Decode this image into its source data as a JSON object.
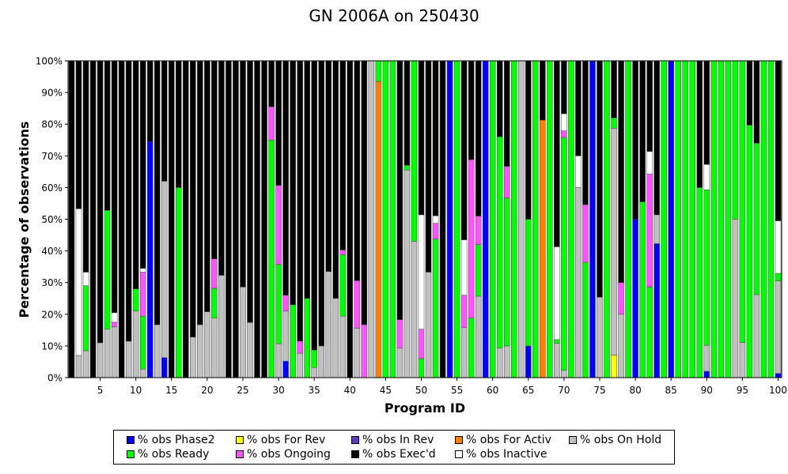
{
  "chart_data": {
    "type": "bar",
    "stacked": true,
    "title": "GN 2006A on 250430",
    "xlabel": "Program ID",
    "ylabel": "Percentage of observations",
    "ylim": [
      0,
      100
    ],
    "y_ticks": [
      "0%",
      "10%",
      "20%",
      "30%",
      "40%",
      "50%",
      "60%",
      "70%",
      "80%",
      "90%",
      "100%"
    ],
    "x_ticks": [
      "5",
      "10",
      "15",
      "20",
      "25",
      "30",
      "35",
      "40",
      "45",
      "50",
      "55",
      "60",
      "65",
      "70",
      "75",
      "80",
      "85",
      "90",
      "95",
      "100"
    ],
    "legend_position": "bottom",
    "legend": [
      {
        "key": "phase2",
        "label": "% obs Phase2",
        "color": "#0000ff"
      },
      {
        "key": "for_rev",
        "label": "% obs For Rev",
        "color": "#ffff00"
      },
      {
        "key": "in_rev",
        "label": "% obs In Rev",
        "color": "#6633cc"
      },
      {
        "key": "for_activ",
        "label": "% obs For Activ",
        "color": "#ff7f00"
      },
      {
        "key": "on_hold",
        "label": "% obs On Hold",
        "color": "#c0c0c0"
      },
      {
        "key": "ready",
        "label": "% obs Ready",
        "color": "#00ff00"
      },
      {
        "key": "ongoing",
        "label": "% obs Ongoing",
        "color": "#ff55ff"
      },
      {
        "key": "execd",
        "label": "% obs Exec'd",
        "color": "#000000"
      },
      {
        "key": "inactive",
        "label": "% obs Inactive",
        "color": "#ffffff"
      }
    ],
    "stack_order": [
      "phase2",
      "for_rev",
      "in_rev",
      "for_activ",
      "on_hold",
      "ready",
      "ongoing",
      "inactive",
      "execd"
    ],
    "categories": [
      "1",
      "2",
      "3",
      "4",
      "5",
      "6",
      "7",
      "8",
      "9",
      "10",
      "11",
      "12",
      "13",
      "14",
      "15",
      "16",
      "17",
      "18",
      "19",
      "20",
      "21",
      "22",
      "23",
      "24",
      "25",
      "26",
      "27",
      "28",
      "29",
      "30",
      "31",
      "32",
      "33",
      "34",
      "35",
      "36",
      "37",
      "38",
      "39",
      "40",
      "41",
      "42",
      "43",
      "44",
      "45",
      "46",
      "47",
      "48",
      "49",
      "50",
      "51",
      "52",
      "53",
      "54",
      "55",
      "56",
      "57",
      "58",
      "59",
      "60",
      "61",
      "62",
      "63",
      "64",
      "65",
      "66",
      "67",
      "68",
      "69",
      "70",
      "71",
      "72",
      "73",
      "74",
      "75",
      "76",
      "77",
      "78",
      "79",
      "80",
      "81",
      "82",
      "83",
      "84",
      "85",
      "86",
      "87",
      "88",
      "89",
      "90",
      "91",
      "92",
      "93",
      "94",
      "95",
      "96",
      "97",
      "98",
      "99",
      "100"
    ],
    "bars": [
      {
        "execd": 100
      },
      {
        "on_hold": 7,
        "inactive": 46.3,
        "execd": 46.7
      },
      {
        "on_hold": 8.5,
        "ready": 20.5,
        "inactive": 4.3,
        "execd": 66.7
      },
      {
        "execd": 100
      },
      {
        "on_hold": 11,
        "execd": 89
      },
      {
        "on_hold": 15.3,
        "ready": 37.5,
        "execd": 47.2
      },
      {
        "on_hold": 16,
        "ongoing": 1.5,
        "inactive": 3,
        "execd": 79.5
      },
      {
        "execd": 100
      },
      {
        "on_hold": 11.5,
        "execd": 88.5
      },
      {
        "on_hold": 21,
        "ready": 7,
        "execd": 72
      },
      {
        "on_hold": 2.7,
        "ready": 16.7,
        "ongoing": 13.9,
        "inactive": 1.2,
        "execd": 65.5
      },
      {
        "phase2": 74.5,
        "execd": 25.5
      },
      {
        "on_hold": 16.7,
        "execd": 83.3
      },
      {
        "phase2": 6.3,
        "on_hold": 55.7,
        "execd": 38
      },
      {
        "execd": 100
      },
      {
        "ready": 60,
        "execd": 40
      },
      {
        "execd": 100
      },
      {
        "on_hold": 12.8,
        "execd": 87.2
      },
      {
        "on_hold": 16.7,
        "execd": 83.3
      },
      {
        "on_hold": 20.8,
        "execd": 79.2
      },
      {
        "on_hold": 18.8,
        "ready": 9.4,
        "ongoing": 9.3,
        "execd": 62.5
      },
      {
        "on_hold": 32.3,
        "execd": 67.7
      },
      {
        "execd": 100
      },
      {
        "execd": 100
      },
      {
        "on_hold": 28.6,
        "execd": 71.4
      },
      {
        "on_hold": 17.4,
        "execd": 82.6
      },
      {
        "execd": 100
      },
      {
        "execd": 100
      },
      {
        "ready": 75,
        "ongoing": 10.5,
        "execd": 14.5
      },
      {
        "on_hold": 10.7,
        "ready": 25,
        "ongoing": 25,
        "execd": 39.3
      },
      {
        "phase2": 5.2,
        "on_hold": 15.8,
        "ongoing": 5,
        "execd": 74
      },
      {
        "ready": 23,
        "execd": 77
      },
      {
        "on_hold": 7.7,
        "ongoing": 3.8,
        "execd": 88.5
      },
      {
        "ready": 25,
        "execd": 75
      },
      {
        "on_hold": 3.2,
        "ready": 5.5,
        "execd": 91.3
      },
      {
        "on_hold": 10,
        "execd": 90
      },
      {
        "on_hold": 33.5,
        "execd": 66.5
      },
      {
        "on_hold": 25,
        "execd": 75
      },
      {
        "on_hold": 19.4,
        "ready": 19.4,
        "ongoing": 1.5,
        "execd": 59.7
      },
      {
        "execd": 100
      },
      {
        "on_hold": 15.6,
        "ongoing": 15,
        "execd": 69.4
      },
      {
        "ongoing": 16.7,
        "execd": 83.3
      },
      {
        "on_hold": 100
      },
      {
        "for_activ": 93.5,
        "ready": 6.5
      },
      {
        "ready": 100
      },
      {
        "ready": 100
      },
      {
        "on_hold": 9.3,
        "ongoing": 9,
        "execd": 81.7
      },
      {
        "on_hold": 65.5,
        "ready": 1.5,
        "execd": 33
      },
      {
        "on_hold": 43,
        "ready": 57
      },
      {
        "ready": 6,
        "ongoing": 9.3,
        "inactive": 36.1,
        "execd": 48.6
      },
      {
        "on_hold": 33.3,
        "execd": 66.7
      },
      {
        "ready": 43.7,
        "ongoing": 5,
        "inactive": 2.4,
        "execd": 48.9
      },
      {
        "execd": 100
      },
      {
        "phase2": 100
      },
      {
        "ready": 100
      },
      {
        "on_hold": 15.8,
        "ongoing": 10.2,
        "inactive": 17.5,
        "execd": 56.5
      },
      {
        "ready": 18.8,
        "ongoing": 50,
        "execd": 31.2
      },
      {
        "on_hold": 25.7,
        "ready": 16.3,
        "ongoing": 9,
        "execd": 49
      },
      {
        "phase2": 100
      },
      {
        "ready": 100
      },
      {
        "on_hold": 9.3,
        "ready": 66.7,
        "execd": 24
      },
      {
        "on_hold": 10,
        "ready": 46.7,
        "ongoing": 10,
        "execd": 33.3
      },
      {
        "ready": 100
      },
      {
        "on_hold": 100
      },
      {
        "phase2": 10,
        "ready": 40,
        "execd": 50
      },
      {
        "ready": 100
      },
      {
        "for_activ": 81.3,
        "execd": 18.7
      },
      {
        "ready": 100
      },
      {
        "on_hold": 10.8,
        "ready": 1.2,
        "inactive": 29.3,
        "execd": 58.7
      },
      {
        "on_hold": 2.3,
        "ready": 73.5,
        "ongoing": 2.1,
        "inactive": 5.4,
        "execd": 16.7
      },
      {
        "ready": 100
      },
      {
        "on_hold": 60,
        "inactive": 10,
        "execd": 30
      },
      {
        "ready": 36.4,
        "ongoing": 18.2,
        "execd": 45.4
      },
      {
        "phase2": 100
      },
      {
        "on_hold": 25.4,
        "execd": 74.6
      },
      {
        "ready": 100
      },
      {
        "for_rev": 7.1,
        "on_hold": 71.6,
        "ready": 3.3,
        "execd": 18
      },
      {
        "on_hold": 20,
        "ongoing": 10,
        "execd": 70
      },
      {
        "ready": 100
      },
      {
        "phase2": 50,
        "execd": 50
      },
      {
        "ready": 55.5,
        "execd": 44.5
      },
      {
        "ready": 28.6,
        "ongoing": 35.7,
        "inactive": 7.1,
        "execd": 28.6
      },
      {
        "phase2": 42.3,
        "on_hold": 9.1,
        "execd": 48.6
      },
      {
        "ready": 100
      },
      {
        "phase2": 100
      },
      {
        "ready": 100
      },
      {
        "ready": 100
      },
      {
        "ready": 100
      },
      {
        "ready": 60,
        "execd": 40
      },
      {
        "phase2": 2,
        "on_hold": 8.2,
        "ready": 49.1,
        "inactive": 8,
        "execd": 32.7
      },
      {
        "ready": 100
      },
      {
        "ready": 100
      },
      {
        "ready": 100
      },
      {
        "on_hold": 50,
        "ready": 50
      },
      {
        "on_hold": 11.1,
        "ready": 88.9
      },
      {
        "ready": 79.7,
        "execd": 20.3
      },
      {
        "on_hold": 26.2,
        "ready": 47.8,
        "execd": 26
      },
      {
        "ready": 100
      },
      {
        "ready": 100
      },
      {
        "phase2": 1.3,
        "on_hold": 29.2,
        "ready": 2.4,
        "inactive": 16.6,
        "execd": 50.5
      }
    ]
  }
}
